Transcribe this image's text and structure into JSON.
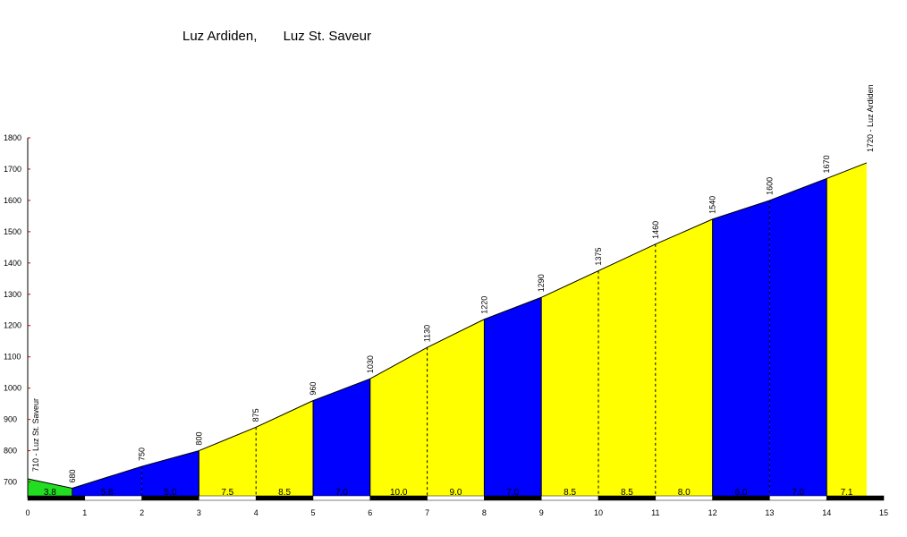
{
  "chart_data": {
    "type": "area",
    "title": "Luz Ardiden,       Luz St. Saveur",
    "xlim": [
      0,
      15
    ],
    "ylim": [
      650,
      1800
    ],
    "x_ticks": [
      0,
      1,
      2,
      3,
      4,
      5,
      6,
      7,
      8,
      9,
      10,
      11,
      12,
      13,
      14,
      15
    ],
    "y_ticks": [
      700,
      800,
      900,
      1000,
      1100,
      1200,
      1300,
      1400,
      1500,
      1600,
      1700,
      1800
    ],
    "points": [
      {
        "x": 0,
        "y": 710,
        "label": "710 - Luz St. Saveur"
      },
      {
        "x": 0.78,
        "y": 680,
        "label": "680"
      },
      {
        "x": 2,
        "y": 750,
        "label": "750"
      },
      {
        "x": 3,
        "y": 800,
        "label": "800"
      },
      {
        "x": 4,
        "y": 875,
        "label": "875"
      },
      {
        "x": 5,
        "y": 960,
        "label": "960"
      },
      {
        "x": 6,
        "y": 1030,
        "label": "1030"
      },
      {
        "x": 7,
        "y": 1130,
        "label": "1130"
      },
      {
        "x": 8,
        "y": 1220,
        "label": "1220"
      },
      {
        "x": 9,
        "y": 1290,
        "label": "1290"
      },
      {
        "x": 10,
        "y": 1375,
        "label": "1375"
      },
      {
        "x": 11,
        "y": 1460,
        "label": "1460"
      },
      {
        "x": 12,
        "y": 1540,
        "label": "1540"
      },
      {
        "x": 13,
        "y": 1600,
        "label": "1600"
      },
      {
        "x": 14,
        "y": 1670,
        "label": "1670"
      },
      {
        "x": 14.7,
        "y": 1720,
        "label": "1720 - Luz Ardiden"
      }
    ],
    "segments": [
      {
        "from": 0,
        "to": 0.78,
        "gradient": "3.8",
        "color": "#22dd22"
      },
      {
        "from": 0.78,
        "to": 2,
        "gradient": "5.8",
        "color": "#0000ff"
      },
      {
        "from": 2,
        "to": 3,
        "gradient": "5.0",
        "color": "#0000ff"
      },
      {
        "from": 3,
        "to": 4,
        "gradient": "7.5",
        "color": "#ffff00"
      },
      {
        "from": 4,
        "to": 5,
        "gradient": "8.5",
        "color": "#ffff00"
      },
      {
        "from": 5,
        "to": 6,
        "gradient": "7.0",
        "color": "#0000ff"
      },
      {
        "from": 6,
        "to": 7,
        "gradient": "10.0",
        "color": "#ffff00"
      },
      {
        "from": 7,
        "to": 8,
        "gradient": "9.0",
        "color": "#ffff00"
      },
      {
        "from": 8,
        "to": 9,
        "gradient": "7.0",
        "color": "#0000ff"
      },
      {
        "from": 9,
        "to": 10,
        "gradient": "8.5",
        "color": "#ffff00"
      },
      {
        "from": 10,
        "to": 11,
        "gradient": "8.5",
        "color": "#ffff00"
      },
      {
        "from": 11,
        "to": 12,
        "gradient": "8.0",
        "color": "#ffff00"
      },
      {
        "from": 12,
        "to": 13,
        "gradient": "6.0",
        "color": "#0000ff"
      },
      {
        "from": 13,
        "to": 14,
        "gradient": "7.0",
        "color": "#0000ff"
      },
      {
        "from": 14,
        "to": 14.7,
        "gradient": "7.1",
        "color": "#ffff00"
      }
    ],
    "dashed_dividers": [
      2,
      4,
      7,
      10,
      11,
      13
    ],
    "grid": false,
    "legend": "none"
  }
}
